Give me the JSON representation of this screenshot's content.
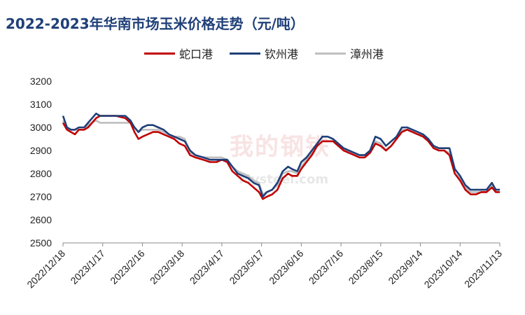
{
  "chart_data": {
    "type": "line",
    "title": "2022-2023年华南市场玉米价格走势（元/吨）",
    "xlabel": "",
    "ylabel": "",
    "ylim": [
      2500,
      3200
    ],
    "yticks": [
      2500,
      2600,
      2700,
      2800,
      2900,
      3000,
      3100,
      3200
    ],
    "x_range": [
      "2022/12/18",
      "2023/11/13"
    ],
    "x_ticks": [
      "2022/12/18",
      "2023/1/17",
      "2023/2/16",
      "2023/3/18",
      "2023/4/17",
      "2023/5/17",
      "2023/6/16",
      "2023/7/16",
      "2023/8/15",
      "2023/9/14",
      "2023/10/14",
      "2023/11/13"
    ],
    "grid": false,
    "legend_position": "top",
    "series": [
      {
        "name": "蛇口港",
        "color": "#c00000",
        "points": [
          [
            "2022/12/18",
            3020
          ],
          [
            "2022/12/21",
            2990
          ],
          [
            "2022/12/24",
            2980
          ],
          [
            "2022/12/27",
            2970
          ],
          [
            "2022/12/30",
            2990
          ],
          [
            "2023/1/3",
            2990
          ],
          [
            "2023/1/6",
            3000
          ],
          [
            "2023/1/9",
            3020
          ],
          [
            "2023/1/12",
            3040
          ],
          [
            "2023/1/15",
            3050
          ],
          [
            "2023/1/20",
            3050
          ],
          [
            "2023/1/27",
            3050
          ],
          [
            "2023/2/3",
            3040
          ],
          [
            "2023/2/7",
            3020
          ],
          [
            "2023/2/10",
            2980
          ],
          [
            "2023/2/13",
            2950
          ],
          [
            "2023/2/16",
            2960
          ],
          [
            "2023/2/20",
            2970
          ],
          [
            "2023/2/24",
            2980
          ],
          [
            "2023/2/28",
            2980
          ],
          [
            "2023/3/4",
            2970
          ],
          [
            "2023/3/8",
            2960
          ],
          [
            "2023/3/12",
            2950
          ],
          [
            "2023/3/16",
            2930
          ],
          [
            "2023/3/20",
            2920
          ],
          [
            "2023/3/24",
            2880
          ],
          [
            "2023/3/28",
            2870
          ],
          [
            "2023/4/3",
            2860
          ],
          [
            "2023/4/8",
            2850
          ],
          [
            "2023/4/13",
            2850
          ],
          [
            "2023/4/17",
            2860
          ],
          [
            "2023/4/21",
            2850
          ],
          [
            "2023/4/25",
            2810
          ],
          [
            "2023/4/29",
            2790
          ],
          [
            "2023/5/3",
            2770
          ],
          [
            "2023/5/7",
            2760
          ],
          [
            "2023/5/11",
            2740
          ],
          [
            "2023/5/15",
            2720
          ],
          [
            "2023/5/18",
            2690
          ],
          [
            "2023/5/21",
            2700
          ],
          [
            "2023/5/25",
            2710
          ],
          [
            "2023/5/29",
            2730
          ],
          [
            "2023/6/2",
            2780
          ],
          [
            "2023/6/6",
            2800
          ],
          [
            "2023/6/9",
            2790
          ],
          [
            "2023/6/13",
            2790
          ],
          [
            "2023/6/16",
            2820
          ],
          [
            "2023/6/20",
            2850
          ],
          [
            "2023/6/24",
            2880
          ],
          [
            "2023/6/28",
            2920
          ],
          [
            "2023/7/2",
            2940
          ],
          [
            "2023/7/6",
            2940
          ],
          [
            "2023/7/10",
            2940
          ],
          [
            "2023/7/14",
            2920
          ],
          [
            "2023/7/18",
            2900
          ],
          [
            "2023/7/22",
            2890
          ],
          [
            "2023/7/26",
            2880
          ],
          [
            "2023/7/30",
            2870
          ],
          [
            "2023/8/3",
            2870
          ],
          [
            "2023/8/7",
            2890
          ],
          [
            "2023/8/11",
            2930
          ],
          [
            "2023/8/15",
            2920
          ],
          [
            "2023/8/19",
            2900
          ],
          [
            "2023/8/23",
            2920
          ],
          [
            "2023/8/27",
            2950
          ],
          [
            "2023/8/31",
            2980
          ],
          [
            "2023/9/4",
            2990
          ],
          [
            "2023/9/8",
            2980
          ],
          [
            "2023/9/12",
            2970
          ],
          [
            "2023/9/16",
            2960
          ],
          [
            "2023/9/20",
            2940
          ],
          [
            "2023/9/24",
            2910
          ],
          [
            "2023/9/28",
            2900
          ],
          [
            "2023/10/2",
            2900
          ],
          [
            "2023/10/6",
            2880
          ],
          [
            "2023/10/10",
            2800
          ],
          [
            "2023/10/14",
            2770
          ],
          [
            "2023/10/18",
            2730
          ],
          [
            "2023/10/22",
            2710
          ],
          [
            "2023/10/26",
            2710
          ],
          [
            "2023/10/30",
            2720
          ],
          [
            "2023/11/3",
            2720
          ],
          [
            "2023/11/7",
            2740
          ],
          [
            "2023/11/10",
            2720
          ],
          [
            "2023/11/13",
            2720
          ]
        ]
      },
      {
        "name": "钦州港",
        "color": "#1f3f78",
        "points": [
          [
            "2022/12/18",
            3050
          ],
          [
            "2022/12/21",
            3000
          ],
          [
            "2022/12/24",
            2990
          ],
          [
            "2022/12/27",
            2990
          ],
          [
            "2022/12/30",
            3000
          ],
          [
            "2023/1/3",
            3000
          ],
          [
            "2023/1/6",
            3020
          ],
          [
            "2023/1/9",
            3040
          ],
          [
            "2023/1/12",
            3060
          ],
          [
            "2023/1/15",
            3050
          ],
          [
            "2023/1/20",
            3050
          ],
          [
            "2023/1/27",
            3050
          ],
          [
            "2023/2/3",
            3050
          ],
          [
            "2023/2/7",
            3030
          ],
          [
            "2023/2/10",
            3000
          ],
          [
            "2023/2/13",
            2980
          ],
          [
            "2023/2/16",
            3000
          ],
          [
            "2023/2/20",
            3010
          ],
          [
            "2023/2/24",
            3010
          ],
          [
            "2023/2/28",
            3000
          ],
          [
            "2023/3/4",
            2990
          ],
          [
            "2023/3/8",
            2970
          ],
          [
            "2023/3/12",
            2960
          ],
          [
            "2023/3/16",
            2950
          ],
          [
            "2023/3/20",
            2940
          ],
          [
            "2023/3/24",
            2900
          ],
          [
            "2023/3/28",
            2880
          ],
          [
            "2023/4/3",
            2870
          ],
          [
            "2023/4/8",
            2860
          ],
          [
            "2023/4/13",
            2860
          ],
          [
            "2023/4/17",
            2860
          ],
          [
            "2023/4/21",
            2860
          ],
          [
            "2023/4/25",
            2830
          ],
          [
            "2023/4/29",
            2800
          ],
          [
            "2023/5/3",
            2790
          ],
          [
            "2023/5/7",
            2780
          ],
          [
            "2023/5/11",
            2760
          ],
          [
            "2023/5/15",
            2750
          ],
          [
            "2023/5/18",
            2700
          ],
          [
            "2023/5/21",
            2720
          ],
          [
            "2023/5/25",
            2730
          ],
          [
            "2023/5/29",
            2760
          ],
          [
            "2023/6/2",
            2810
          ],
          [
            "2023/6/6",
            2830
          ],
          [
            "2023/6/9",
            2820
          ],
          [
            "2023/6/13",
            2810
          ],
          [
            "2023/6/16",
            2850
          ],
          [
            "2023/6/20",
            2870
          ],
          [
            "2023/6/24",
            2900
          ],
          [
            "2023/6/28",
            2930
          ],
          [
            "2023/7/2",
            2960
          ],
          [
            "2023/7/6",
            2960
          ],
          [
            "2023/7/10",
            2950
          ],
          [
            "2023/7/14",
            2930
          ],
          [
            "2023/7/18",
            2910
          ],
          [
            "2023/7/22",
            2900
          ],
          [
            "2023/7/26",
            2890
          ],
          [
            "2023/7/30",
            2880
          ],
          [
            "2023/8/3",
            2880
          ],
          [
            "2023/8/7",
            2900
          ],
          [
            "2023/8/11",
            2960
          ],
          [
            "2023/8/15",
            2950
          ],
          [
            "2023/8/19",
            2920
          ],
          [
            "2023/8/23",
            2940
          ],
          [
            "2023/8/27",
            2960
          ],
          [
            "2023/8/31",
            3000
          ],
          [
            "2023/9/4",
            3000
          ],
          [
            "2023/9/8",
            2990
          ],
          [
            "2023/9/12",
            2980
          ],
          [
            "2023/9/16",
            2970
          ],
          [
            "2023/9/20",
            2950
          ],
          [
            "2023/9/24",
            2920
          ],
          [
            "2023/9/28",
            2910
          ],
          [
            "2023/10/2",
            2910
          ],
          [
            "2023/10/6",
            2910
          ],
          [
            "2023/10/10",
            2820
          ],
          [
            "2023/10/14",
            2790
          ],
          [
            "2023/10/18",
            2750
          ],
          [
            "2023/10/22",
            2730
          ],
          [
            "2023/10/26",
            2730
          ],
          [
            "2023/10/30",
            2730
          ],
          [
            "2023/11/3",
            2730
          ],
          [
            "2023/11/7",
            2760
          ],
          [
            "2023/11/10",
            2730
          ],
          [
            "2023/11/13",
            2730
          ]
        ]
      },
      {
        "name": "漳州港",
        "color": "#bfbfbf",
        "points": [
          [
            "2022/12/18",
            3030
          ],
          [
            "2022/12/21",
            3000
          ],
          [
            "2022/12/24",
            2990
          ],
          [
            "2022/12/27",
            2990
          ],
          [
            "2022/12/30",
            2990
          ],
          [
            "2023/1/3",
            2990
          ],
          [
            "2023/1/6",
            3010
          ],
          [
            "2023/1/9",
            3020
          ],
          [
            "2023/1/12",
            3030
          ],
          [
            "2023/1/15",
            3020
          ],
          [
            "2023/1/20",
            3020
          ],
          [
            "2023/1/27",
            3020
          ],
          [
            "2023/2/3",
            3020
          ],
          [
            "2023/2/7",
            3020
          ],
          [
            "2023/2/10",
            3000
          ],
          [
            "2023/2/13",
            2980
          ],
          [
            "2023/2/16",
            2990
          ],
          [
            "2023/2/20",
            2990
          ],
          [
            "2023/2/24",
            2990
          ],
          [
            "2023/2/28",
            2990
          ],
          [
            "2023/3/4",
            2980
          ],
          [
            "2023/3/8",
            2970
          ],
          [
            "2023/3/12",
            2960
          ],
          [
            "2023/3/16",
            2960
          ],
          [
            "2023/3/20",
            2950
          ],
          [
            "2023/3/24",
            2890
          ],
          [
            "2023/3/28",
            2880
          ],
          [
            "2023/4/3",
            2870
          ],
          [
            "2023/4/8",
            2870
          ],
          [
            "2023/4/13",
            2870
          ],
          [
            "2023/4/17",
            2870
          ],
          [
            "2023/4/21",
            2860
          ],
          [
            "2023/4/25",
            2830
          ],
          [
            "2023/4/29",
            2810
          ],
          [
            "2023/5/3",
            2800
          ],
          [
            "2023/5/7",
            2790
          ],
          [
            "2023/5/11",
            2770
          ],
          [
            "2023/5/15",
            2760
          ],
          [
            "2023/5/18",
            2710
          ],
          [
            "2023/5/21",
            2720
          ],
          [
            "2023/5/25",
            2730
          ],
          [
            "2023/5/29",
            2750
          ],
          [
            "2023/6/2",
            2800
          ],
          [
            "2023/6/6",
            2810
          ],
          [
            "2023/6/9",
            2810
          ],
          [
            "2023/6/13",
            2800
          ],
          [
            "2023/6/16",
            2830
          ],
          [
            "2023/6/20",
            2860
          ],
          [
            "2023/6/24",
            2890
          ],
          [
            "2023/6/28",
            2920
          ],
          [
            "2023/7/2",
            2940
          ],
          [
            "2023/7/6",
            2940
          ],
          [
            "2023/7/10",
            2940
          ],
          [
            "2023/7/14",
            2930
          ],
          [
            "2023/7/18",
            2910
          ],
          [
            "2023/7/22",
            2900
          ],
          [
            "2023/7/26",
            2890
          ],
          [
            "2023/7/30",
            2880
          ],
          [
            "2023/8/3",
            2880
          ],
          [
            "2023/8/7",
            2900
          ],
          [
            "2023/8/11",
            2940
          ],
          [
            "2023/8/15",
            2930
          ],
          [
            "2023/8/19",
            2900
          ],
          [
            "2023/8/23",
            2920
          ],
          [
            "2023/8/27",
            2950
          ],
          [
            "2023/8/31",
            2990
          ],
          [
            "2023/9/4",
            2990
          ],
          [
            "2023/9/8",
            2980
          ],
          [
            "2023/9/12",
            2970
          ],
          [
            "2023/9/16",
            2970
          ],
          [
            "2023/9/20",
            2950
          ],
          [
            "2023/9/24",
            2910
          ],
          [
            "2023/9/28",
            2900
          ],
          [
            "2023/10/2",
            2900
          ],
          [
            "2023/10/6",
            2890
          ],
          [
            "2023/10/10",
            2800
          ],
          [
            "2023/10/14",
            2780
          ],
          [
            "2023/10/18",
            2740
          ],
          [
            "2023/10/22",
            2720
          ],
          [
            "2023/10/26",
            2720
          ],
          [
            "2023/10/30",
            2720
          ],
          [
            "2023/11/3",
            2720
          ],
          [
            "2023/11/7",
            2750
          ],
          [
            "2023/11/10",
            2730
          ],
          [
            "2023/11/13",
            2730
          ]
        ]
      }
    ]
  }
}
